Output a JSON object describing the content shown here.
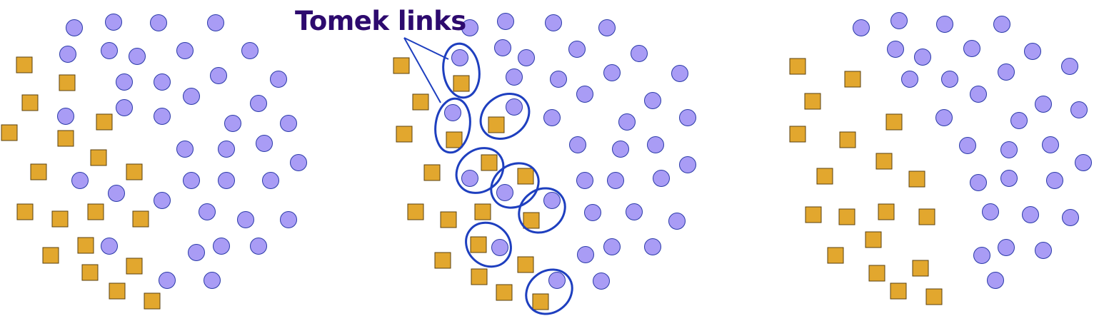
{
  "annotation": {
    "label": "Tomek links"
  },
  "colors": {
    "circle_fill": "#a99cf5",
    "circle_stroke": "#2a3aa8",
    "square_fill": "#e2a72e",
    "square_stroke": "#5a4010",
    "link_stroke": "#1e3fbf",
    "label_color": "#2d0a6e"
  },
  "panels": [
    {
      "name": "original-dataset",
      "shapes": "circles-and-squares"
    },
    {
      "name": "tomek-links-marked",
      "shapes": "circles-and-squares",
      "links": 8
    },
    {
      "name": "after-removal",
      "shapes": "circles-and-squares"
    }
  ]
}
